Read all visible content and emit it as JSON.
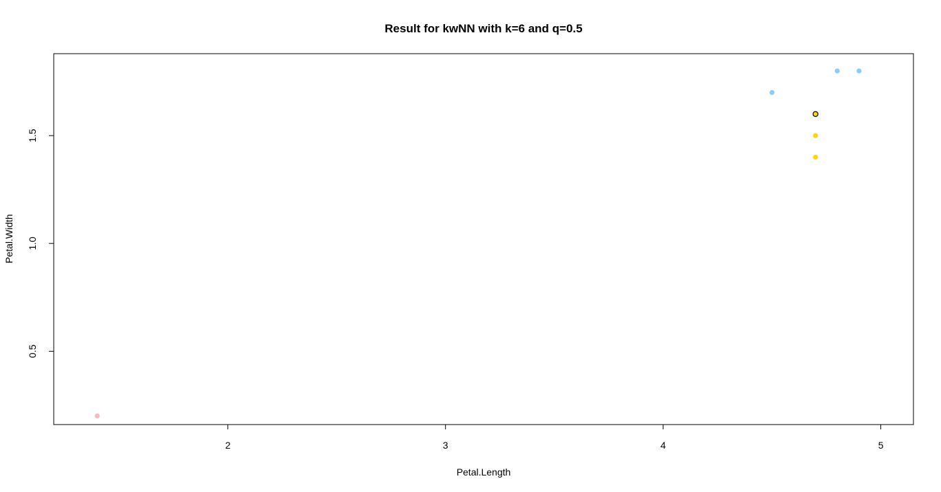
{
  "chart_data": {
    "type": "scatter",
    "title": "Result for kwNN with k=6 and q=0.5",
    "xlabel": "Petal.Length",
    "ylabel": "Petal.Width",
    "xlim": [
      1.2,
      5.15
    ],
    "ylim": [
      0.16,
      1.88
    ],
    "x_ticks": [
      2,
      3,
      4,
      5
    ],
    "y_ticks": [
      0.5,
      1.0,
      1.5
    ],
    "x_tick_labels": [
      "2",
      "3",
      "4",
      "5"
    ],
    "y_tick_labels": [
      "0.5",
      "1.0",
      "1.5"
    ],
    "grid": false,
    "legend": "none",
    "colors": {
      "setosa": "#ffb6c1",
      "versicolor": "#ffd700",
      "virginica": "#87cefa",
      "classified_outline": "#000000"
    },
    "points": [
      {
        "x": 1.4,
        "y": 0.2,
        "color": "#ffb6c1"
      },
      {
        "x": 4.5,
        "y": 1.7,
        "color": "#87cefa"
      },
      {
        "x": 4.8,
        "y": 1.8,
        "color": "#87cefa"
      },
      {
        "x": 4.9,
        "y": 1.8,
        "color": "#87cefa"
      },
      {
        "x": 4.7,
        "y": 1.5,
        "color": "#ffd700"
      },
      {
        "x": 4.7,
        "y": 1.4,
        "color": "#ffd700"
      }
    ],
    "classified_point": {
      "x": 4.7,
      "y": 1.6,
      "color": "#ffd700"
    }
  }
}
